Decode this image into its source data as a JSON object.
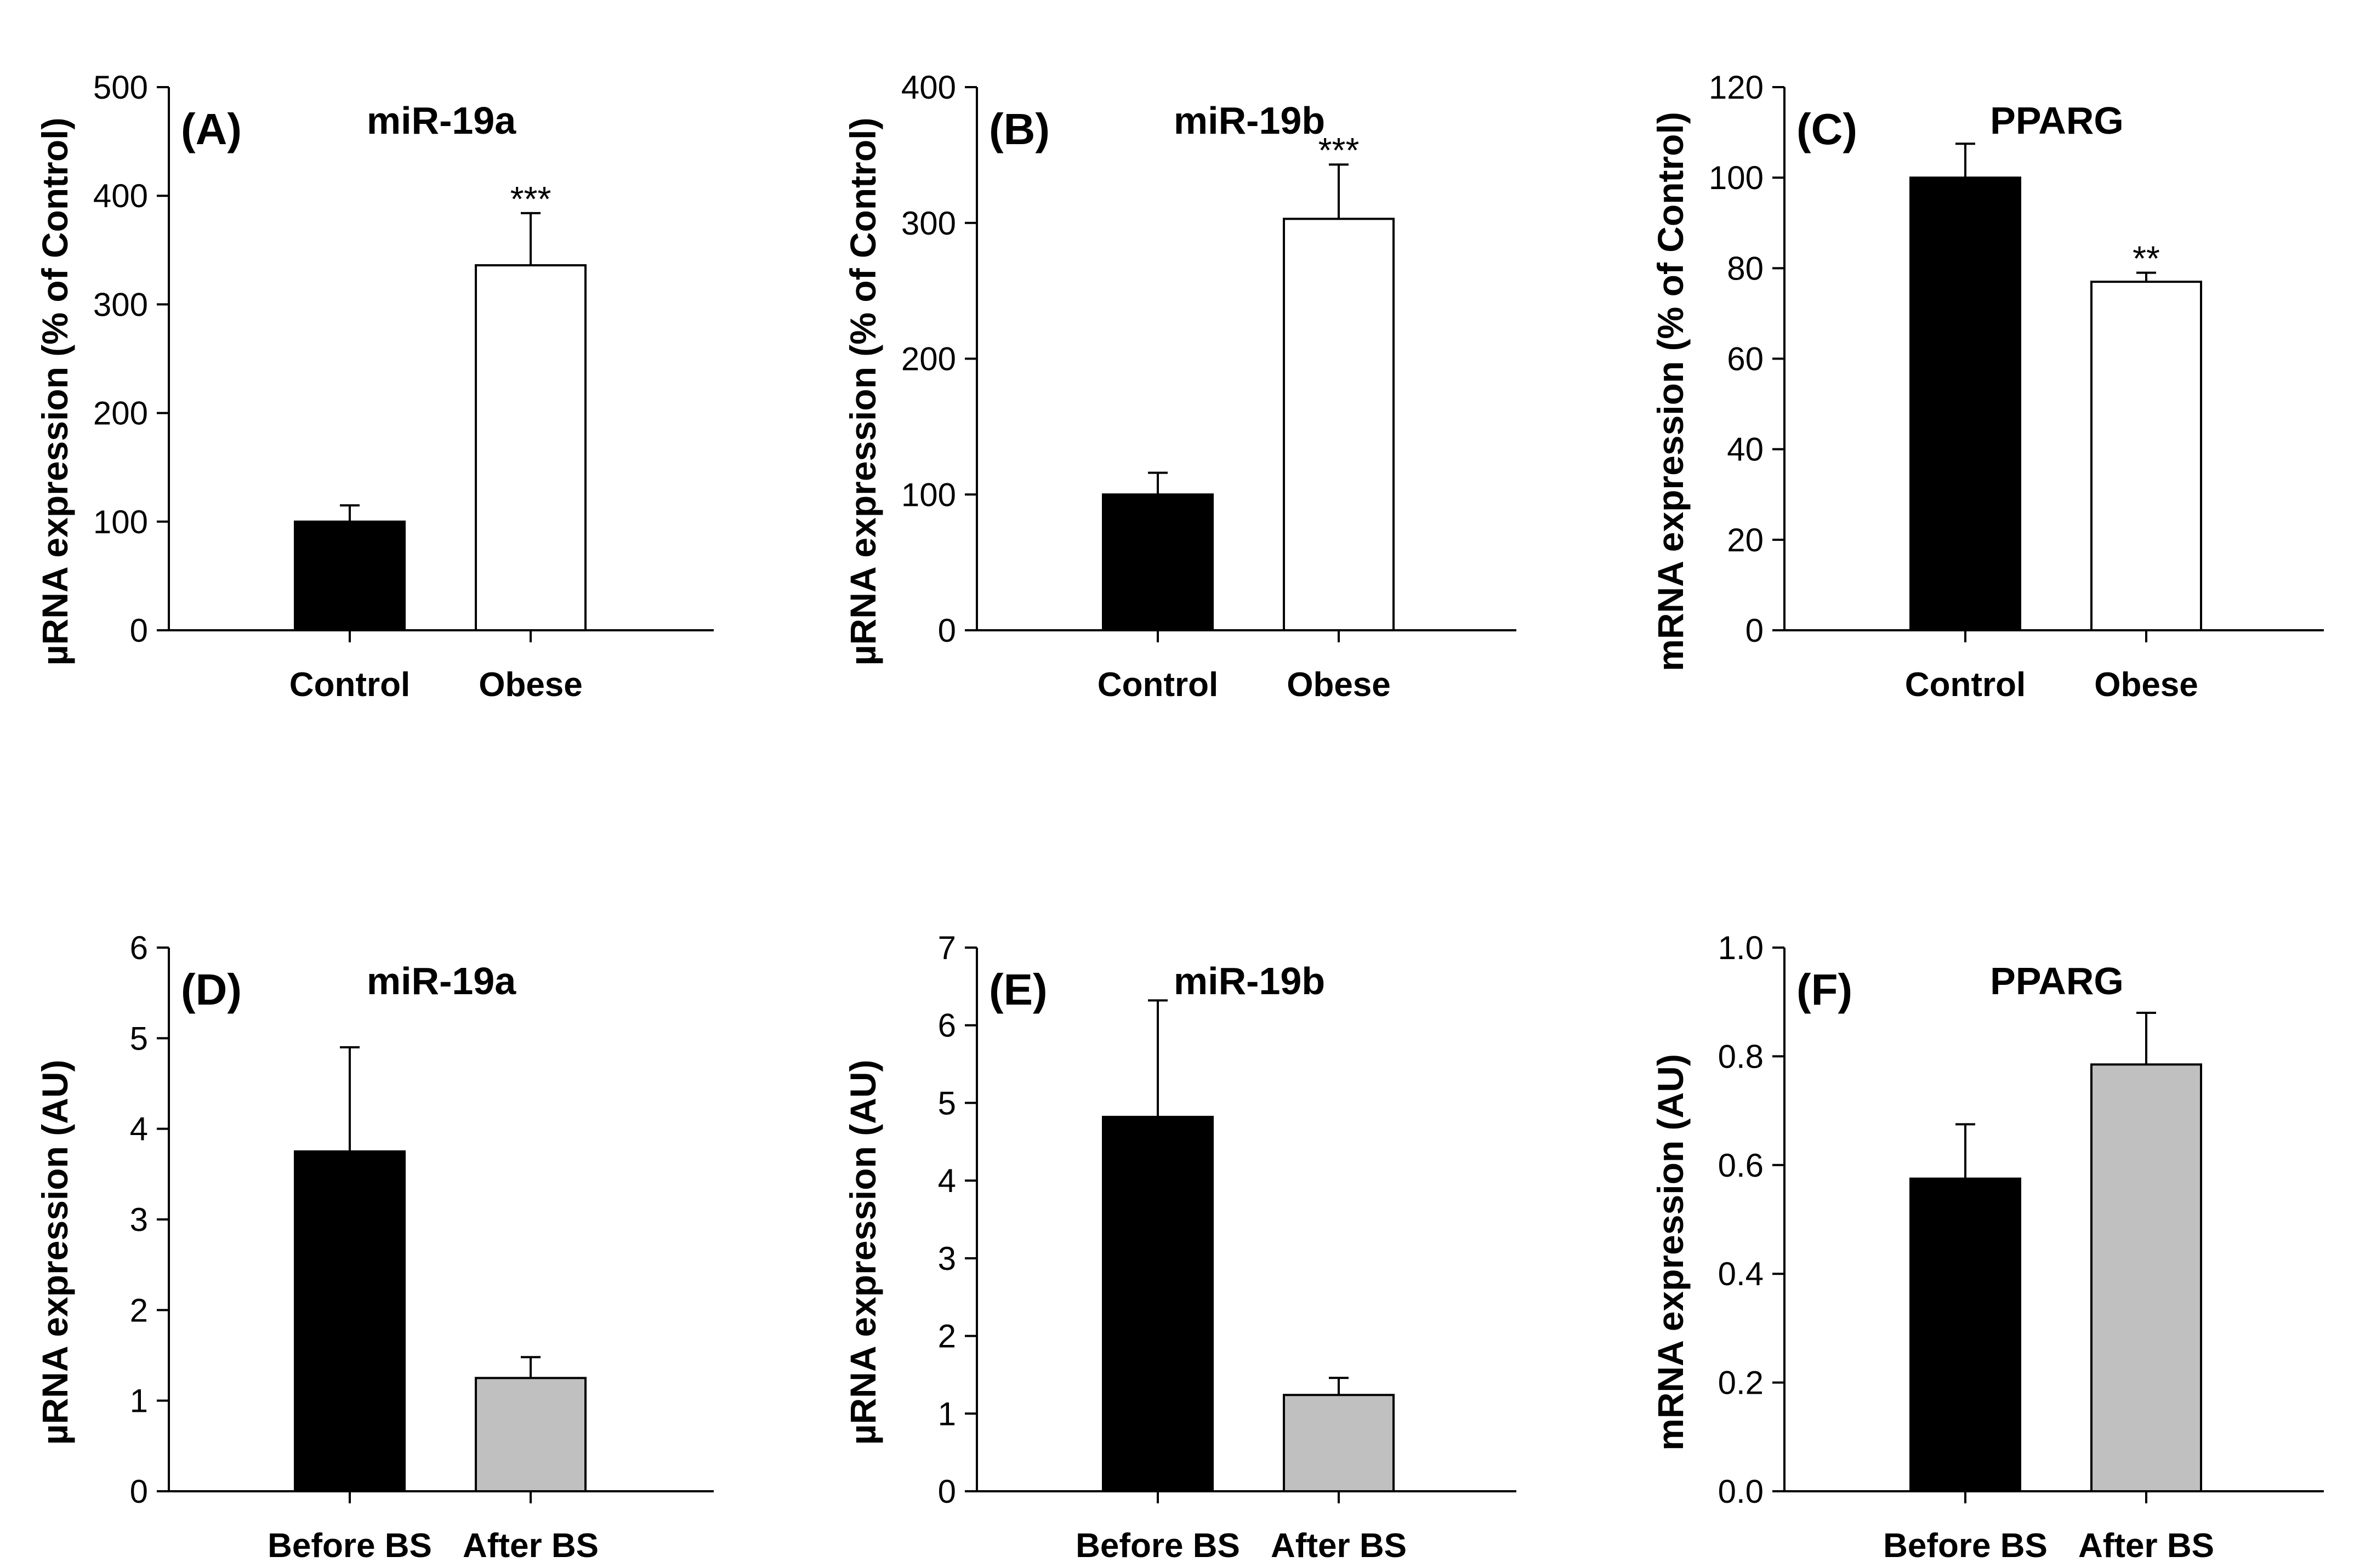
{
  "colors": {
    "black_bar": "#000000",
    "white_bar": "#ffffff",
    "grey_bar": "#c0c0c0",
    "axis": "#000000"
  },
  "chart_data": [
    {
      "type": "bar",
      "panel_label": "(A)",
      "title": "miR-19a",
      "ylabel": "µRNA expression (% of Control)",
      "xlabel": "",
      "categories": [
        "Control",
        "Obese"
      ],
      "values": [
        100,
        336
      ],
      "errors": [
        15,
        48
      ],
      "bar_colors": [
        "#000000",
        "#ffffff"
      ],
      "significance": [
        "",
        "***"
      ],
      "ylim": [
        0,
        500
      ],
      "yticks": [
        "0",
        "100",
        "200",
        "300",
        "400",
        "500"
      ],
      "grid": false
    },
    {
      "type": "bar",
      "panel_label": "(B)",
      "title": "miR-19b",
      "ylabel": "µRNA expression (% of Control)",
      "xlabel": "",
      "categories": [
        "Control",
        "Obese"
      ],
      "values": [
        100,
        303
      ],
      "errors": [
        16,
        40
      ],
      "bar_colors": [
        "#000000",
        "#ffffff"
      ],
      "significance": [
        "",
        "***"
      ],
      "ylim": [
        0,
        400
      ],
      "yticks": [
        "0",
        "100",
        "200",
        "300",
        "400"
      ],
      "grid": false
    },
    {
      "type": "bar",
      "panel_label": "(C)",
      "title": "PPARG",
      "ylabel": "mRNA expression (% of Control)",
      "xlabel": "",
      "categories": [
        "Control",
        "Obese"
      ],
      "values": [
        100,
        77
      ],
      "errors": [
        7.5,
        2
      ],
      "bar_colors": [
        "#000000",
        "#ffffff"
      ],
      "significance": [
        "",
        "**"
      ],
      "ylim": [
        0,
        120
      ],
      "yticks": [
        "0",
        "20",
        "40",
        "60",
        "80",
        "100",
        "120"
      ],
      "grid": false
    },
    {
      "type": "bar",
      "panel_label": "(D)",
      "title": "miR-19a",
      "ylabel": "µRNA expression (AU)",
      "xlabel": "",
      "categories": [
        "Before BS",
        "After BS"
      ],
      "values": [
        3.75,
        1.25
      ],
      "errors": [
        1.15,
        0.23
      ],
      "bar_colors": [
        "#000000",
        "#c0c0c0"
      ],
      "significance": [
        "",
        ""
      ],
      "ylim": [
        0,
        6
      ],
      "yticks": [
        "0",
        "1",
        "2",
        "3",
        "4",
        "5",
        "6"
      ],
      "grid": false
    },
    {
      "type": "bar",
      "panel_label": "(E)",
      "title": "miR-19b",
      "ylabel": "µRNA expression (AU)",
      "xlabel": "",
      "categories": [
        "Before BS",
        "After BS"
      ],
      "values": [
        4.82,
        1.24
      ],
      "errors": [
        1.5,
        0.22
      ],
      "bar_colors": [
        "#000000",
        "#c0c0c0"
      ],
      "significance": [
        "",
        ""
      ],
      "ylim": [
        0,
        7
      ],
      "yticks": [
        "0",
        "1",
        "2",
        "3",
        "4",
        "5",
        "6",
        "7"
      ],
      "grid": false
    },
    {
      "type": "bar",
      "panel_label": "(F)",
      "title": "PPARG",
      "ylabel": "mRNA expression (AU)",
      "xlabel": "",
      "categories": [
        "Before BS",
        "After BS"
      ],
      "values": [
        0.575,
        0.785
      ],
      "errors": [
        0.1,
        0.095
      ],
      "bar_colors": [
        "#000000",
        "#c0c0c0"
      ],
      "significance": [
        "",
        ""
      ],
      "ylim": [
        0,
        1
      ],
      "yticks": [
        "0.0",
        "0.2",
        "0.4",
        "0.6",
        "0.8",
        "1.0"
      ],
      "grid": false
    }
  ]
}
